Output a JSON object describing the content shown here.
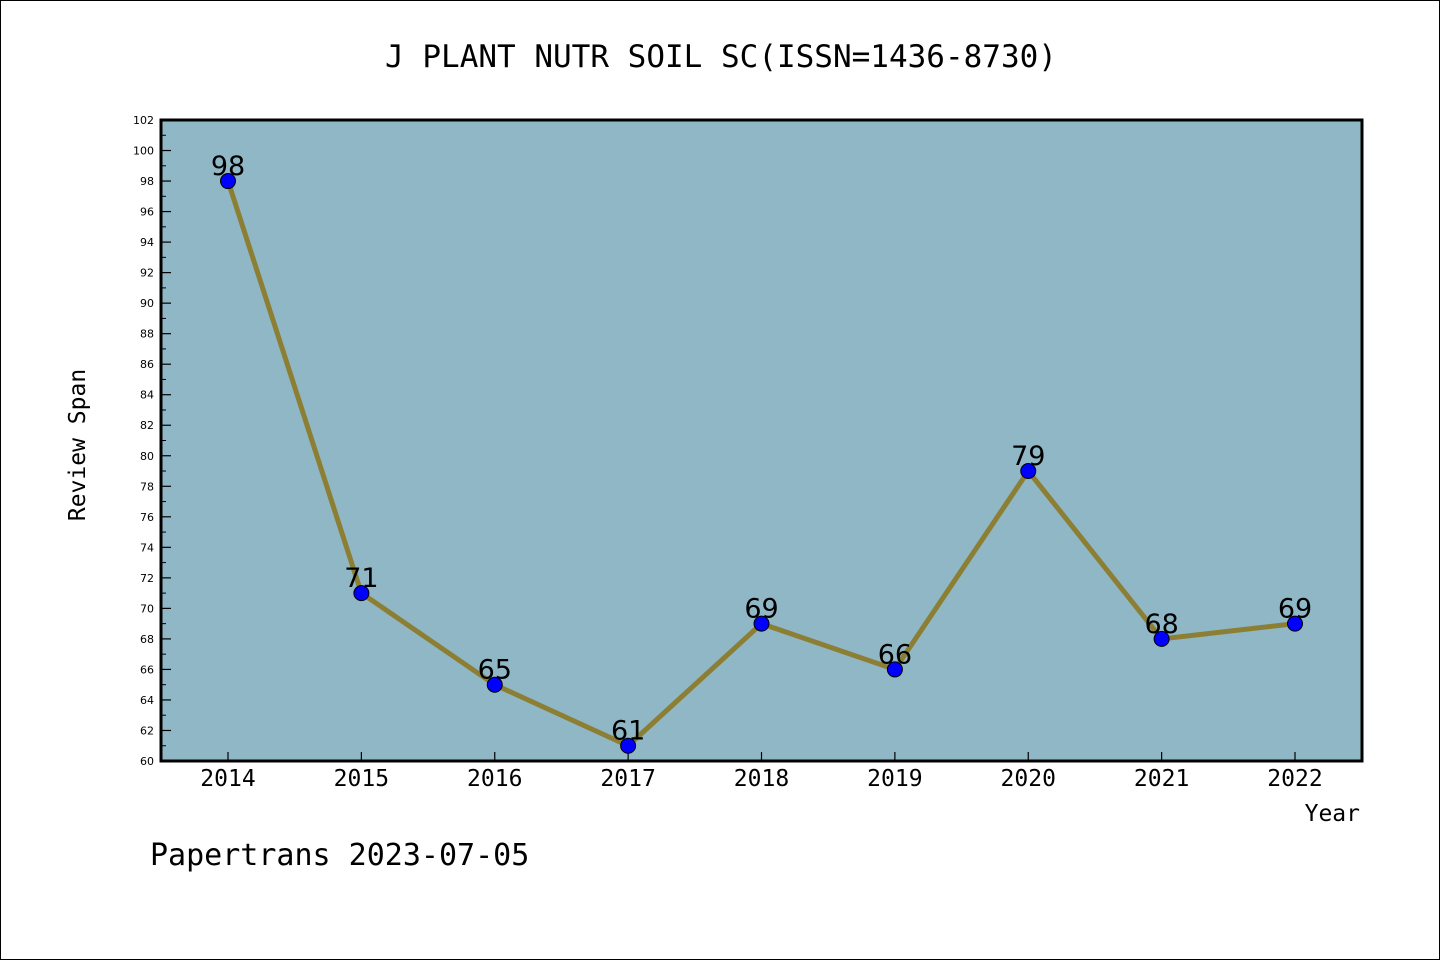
{
  "chart_data": {
    "type": "line",
    "title": "J PLANT NUTR SOIL SC(ISSN=1436-8730)",
    "xlabel": "Year",
    "ylabel": "Review Span",
    "categories": [
      "2014",
      "2015",
      "2016",
      "2017",
      "2018",
      "2019",
      "2020",
      "2021",
      "2022"
    ],
    "values": [
      98,
      71,
      65,
      61,
      69,
      66,
      79,
      68,
      69
    ],
    "ylim": [
      60,
      102
    ],
    "ytick_step": 2,
    "grid": false,
    "legend": "none",
    "data_labels": true,
    "colors": {
      "plot_background": "#8FB7C5",
      "line": "#8C7F34",
      "marker": "#0000FF",
      "text": "#000000"
    }
  },
  "footer": {
    "credit": "Papertrans 2023-07-05"
  }
}
